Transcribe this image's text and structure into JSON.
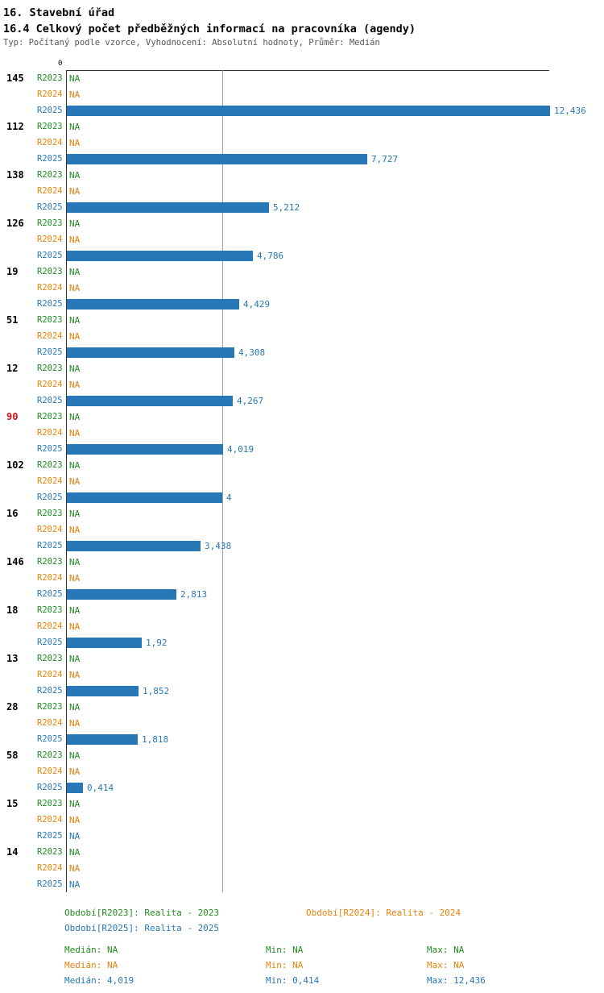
{
  "header": {
    "title1": "16. Stavební úřad",
    "title2": "16.4 Celkový počet předběžných informací na pracovníka (agendy)",
    "subtitle": "Typ: Počítaný podle vzorce, Vyhodnocení: Absolutní hodnoty, Průměr: Medián"
  },
  "colors": {
    "r2023": "#228b22",
    "r2024": "#e8820c",
    "r2025": "#2878b8",
    "highlight_id": "#d01020"
  },
  "chart_data": {
    "type": "bar",
    "orientation": "horizontal",
    "x_axis": {
      "zero_label": "0",
      "min": 0,
      "max": 12.436
    },
    "series_labels": [
      "R2023",
      "R2024",
      "R2025"
    ],
    "legend_position": "bottom",
    "median_value": 4.019,
    "max_value": 12.436,
    "groups": [
      {
        "id": "145",
        "r2023": "NA",
        "r2024": "NA",
        "r2025": 12.436,
        "r2025_label": "12,436",
        "highlight": false
      },
      {
        "id": "112",
        "r2023": "NA",
        "r2024": "NA",
        "r2025": 7.727,
        "r2025_label": "7,727",
        "highlight": false
      },
      {
        "id": "138",
        "r2023": "NA",
        "r2024": "NA",
        "r2025": 5.212,
        "r2025_label": "5,212",
        "highlight": false
      },
      {
        "id": "126",
        "r2023": "NA",
        "r2024": "NA",
        "r2025": 4.786,
        "r2025_label": "4,786",
        "highlight": false
      },
      {
        "id": "19",
        "r2023": "NA",
        "r2024": "NA",
        "r2025": 4.429,
        "r2025_label": "4,429",
        "highlight": false
      },
      {
        "id": "51",
        "r2023": "NA",
        "r2024": "NA",
        "r2025": 4.308,
        "r2025_label": "4,308",
        "highlight": false
      },
      {
        "id": "12",
        "r2023": "NA",
        "r2024": "NA",
        "r2025": 4.267,
        "r2025_label": "4,267",
        "highlight": false
      },
      {
        "id": "90",
        "r2023": "NA",
        "r2024": "NA",
        "r2025": 4.019,
        "r2025_label": "4,019",
        "highlight": true
      },
      {
        "id": "102",
        "r2023": "NA",
        "r2024": "NA",
        "r2025": 4,
        "r2025_label": "4",
        "highlight": false
      },
      {
        "id": "16",
        "r2023": "NA",
        "r2024": "NA",
        "r2025": 3.438,
        "r2025_label": "3,438",
        "highlight": false
      },
      {
        "id": "146",
        "r2023": "NA",
        "r2024": "NA",
        "r2025": 2.813,
        "r2025_label": "2,813",
        "highlight": false
      },
      {
        "id": "18",
        "r2023": "NA",
        "r2024": "NA",
        "r2025": 1.92,
        "r2025_label": "1,92",
        "highlight": false
      },
      {
        "id": "13",
        "r2023": "NA",
        "r2024": "NA",
        "r2025": 1.852,
        "r2025_label": "1,852",
        "highlight": false
      },
      {
        "id": "28",
        "r2023": "NA",
        "r2024": "NA",
        "r2025": 1.818,
        "r2025_label": "1,818",
        "highlight": false
      },
      {
        "id": "58",
        "r2023": "NA",
        "r2024": "NA",
        "r2025": 0.414,
        "r2025_label": "0,414",
        "highlight": false
      },
      {
        "id": "15",
        "r2023": "NA",
        "r2024": "NA",
        "r2025": "NA",
        "r2025_label": "NA",
        "highlight": false
      },
      {
        "id": "14",
        "r2023": "NA",
        "r2024": "NA",
        "r2025": "NA",
        "r2025_label": "NA",
        "highlight": false
      }
    ]
  },
  "footer": {
    "legend": [
      {
        "label": "Období[R2023]: Realita - 2023"
      },
      {
        "label": "Období[R2024]: Realita - 2024"
      },
      {
        "label": "Období[R2025]: Realita - 2025"
      }
    ],
    "stats": [
      {
        "median": "Medián: NA",
        "min": "Min: NA",
        "max": "Max: NA"
      },
      {
        "median": "Medián: NA",
        "min": "Min: NA",
        "max": "Max: NA"
      },
      {
        "median": "Medián: 4,019",
        "min": "Min: 0,414",
        "max": "Max: 12,436"
      }
    ]
  }
}
